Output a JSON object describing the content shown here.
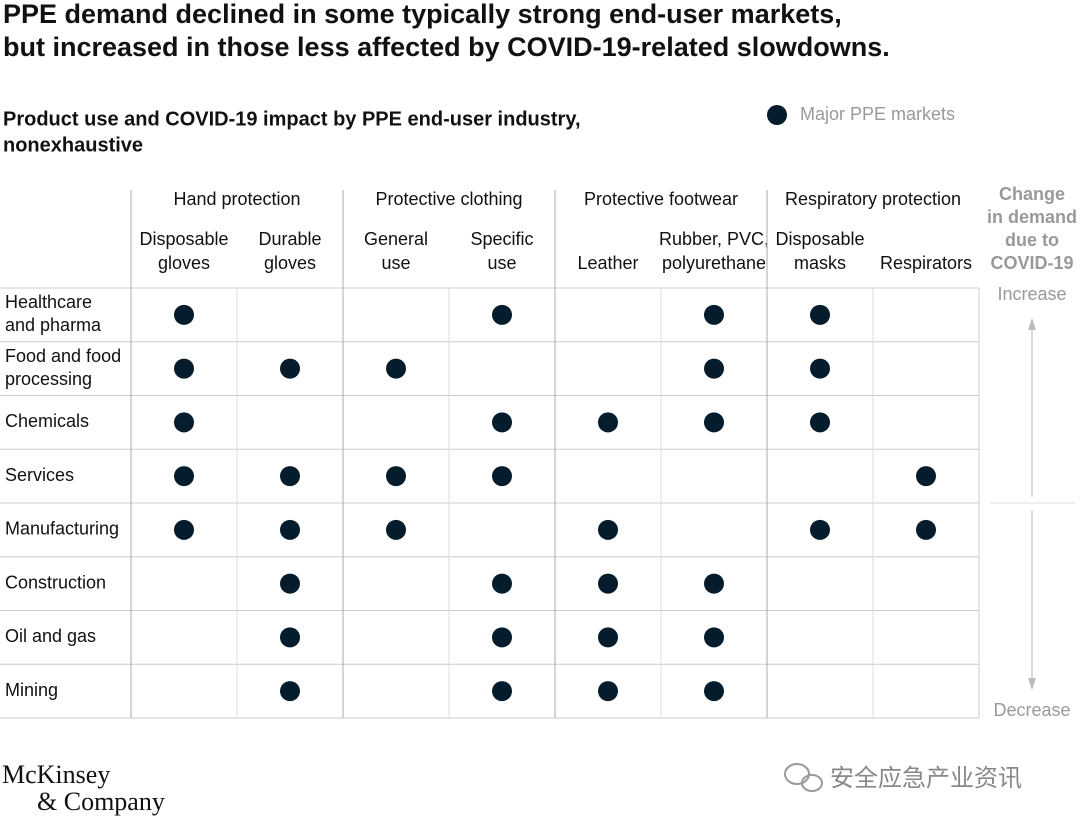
{
  "title": [
    "PPE demand declined in some typically strong end-user markets,",
    "but increased in those less affected by COVID-19-related slowdowns."
  ],
  "subtitle": [
    "Product use and COVID-19 impact by PPE end-user industry,",
    "nonexhaustive"
  ],
  "legend": {
    "label": "Major PPE markets"
  },
  "groups": [
    {
      "name": "Hand protection",
      "columns": [
        [
          "Disposable",
          "gloves"
        ],
        [
          "Durable",
          "gloves"
        ]
      ]
    },
    {
      "name": "Protective clothing",
      "columns": [
        [
          "General",
          "use"
        ],
        [
          "Specific",
          "use"
        ]
      ]
    },
    {
      "name": "Protective footwear",
      "columns": [
        [
          "Leather"
        ],
        [
          "Rubber, PVC,",
          "polyurethane"
        ]
      ]
    },
    {
      "name": "Respiratory protection",
      "columns": [
        [
          "Disposable",
          "masks"
        ],
        [
          "Respirators"
        ]
      ]
    }
  ],
  "rows": [
    {
      "label": [
        "Healthcare",
        "and pharma"
      ],
      "markets": [
        true,
        false,
        false,
        true,
        false,
        true,
        true,
        false
      ]
    },
    {
      "label": [
        "Food and food",
        "processing"
      ],
      "markets": [
        true,
        true,
        true,
        false,
        false,
        true,
        true,
        false
      ]
    },
    {
      "label": [
        "Chemicals"
      ],
      "markets": [
        true,
        false,
        false,
        true,
        true,
        true,
        true,
        false
      ]
    },
    {
      "label": [
        "Services"
      ],
      "markets": [
        true,
        true,
        true,
        true,
        false,
        false,
        false,
        true
      ]
    },
    {
      "label": [
        "Manufacturing"
      ],
      "markets": [
        true,
        true,
        true,
        false,
        true,
        false,
        true,
        true
      ]
    },
    {
      "label": [
        "Construction"
      ],
      "markets": [
        false,
        true,
        false,
        true,
        true,
        true,
        false,
        false
      ]
    },
    {
      "label": [
        "Oil and gas"
      ],
      "markets": [
        false,
        true,
        false,
        true,
        true,
        true,
        false,
        false
      ]
    },
    {
      "label": [
        "Mining"
      ],
      "markets": [
        false,
        true,
        false,
        true,
        true,
        true,
        false,
        false
      ]
    }
  ],
  "demand": {
    "header": [
      "Change",
      "in demand",
      "due to",
      "COVID-19"
    ],
    "increase": "Increase",
    "decrease": "Decrease"
  },
  "footer": {
    "logo": [
      "McKinsey",
      "& Company"
    ],
    "watermark": "安全应急产业资讯"
  }
}
